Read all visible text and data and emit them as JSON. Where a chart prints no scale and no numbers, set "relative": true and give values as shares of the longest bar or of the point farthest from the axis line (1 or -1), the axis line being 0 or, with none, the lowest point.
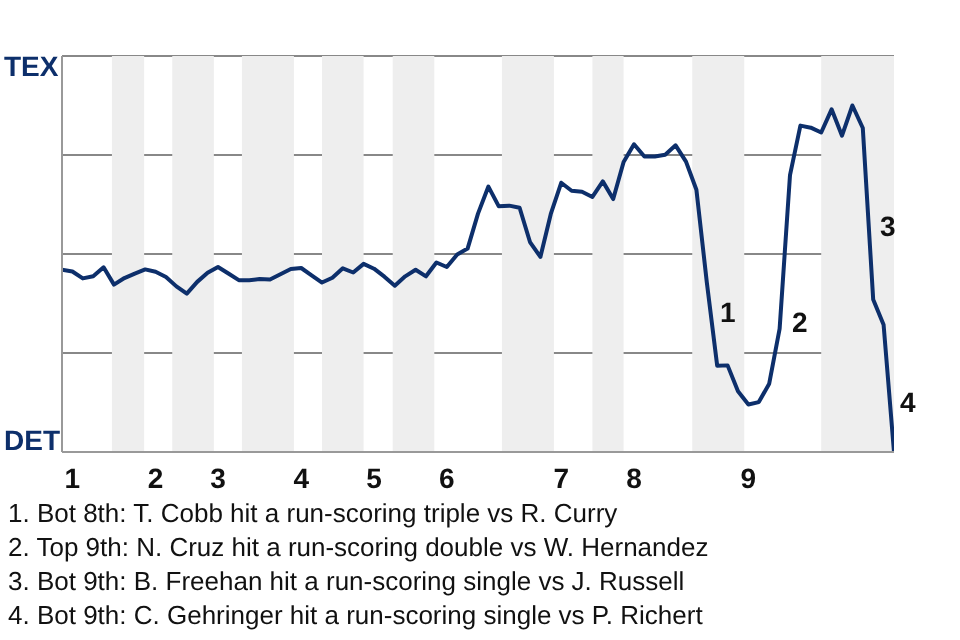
{
  "chart_data": {
    "type": "line",
    "categories": [
      null,
      "1",
      null,
      null,
      null,
      null,
      null,
      null,
      null,
      "2",
      null,
      null,
      null,
      null,
      null,
      "3",
      null,
      null,
      null,
      null,
      null,
      null,
      null,
      "4",
      null,
      null,
      null,
      null,
      null,
      null,
      "5",
      null,
      null,
      null,
      null,
      null,
      null,
      "6",
      null,
      null,
      null,
      null,
      null,
      null,
      null,
      null,
      null,
      null,
      "7",
      null,
      null,
      null,
      null,
      null,
      null,
      "8",
      null,
      null,
      null,
      null,
      null,
      null,
      null,
      null,
      null,
      null,
      "9",
      null,
      null,
      null,
      null,
      null,
      null,
      null,
      null,
      null,
      null,
      null,
      null,
      null,
      null
    ],
    "values": [
      0.526,
      0.521,
      0.501,
      0.507,
      0.533,
      0.483,
      0.502,
      0.515,
      0.527,
      0.52,
      0.505,
      0.478,
      0.457,
      0.491,
      0.517,
      0.534,
      0.515,
      0.496,
      0.496,
      0.499,
      0.498,
      0.513,
      0.528,
      0.531,
      0.51,
      0.489,
      0.503,
      0.53,
      0.518,
      0.543,
      0.529,
      0.506,
      0.48,
      0.507,
      0.526,
      0.507,
      0.547,
      0.534,
      0.57,
      0.587,
      0.688,
      0.766,
      0.709,
      0.711,
      0.705,
      0.606,
      0.563,
      0.687,
      0.777,
      0.754,
      0.751,
      0.736,
      0.781,
      0.73,
      0.837,
      0.888,
      0.853,
      0.853,
      0.858,
      0.885,
      0.838,
      0.757,
      0.49,
      0.249,
      0.25,
      0.175,
      0.137,
      0.144,
      0.197,
      0.355,
      0.799,
      0.942,
      0.936,
      0.922,
      0.989,
      0.913,
      1,
      0.935,
      0.44,
      0.367,
      0
    ],
    "relative": true,
    "color": "#0d2f6b",
    "marker": "none",
    "line_style": "solid",
    "grid": "y",
    "annotations": [
      "TEX",
      "DET",
      "1",
      "2",
      "3",
      "4",
      "1. Bot 8th: T. Cobb hit a run-scoring triple vs R. Curry",
      "2. Top 9th: N. Cruz hit a run-scoring double vs W. Hernandez",
      "3. Bot 9th: B. Freehan hit a run-scoring single vs J. Russell",
      "4. Bot 9th: C. Gehringer hit a run-scoring single vs P. Richert"
    ]
  }
}
